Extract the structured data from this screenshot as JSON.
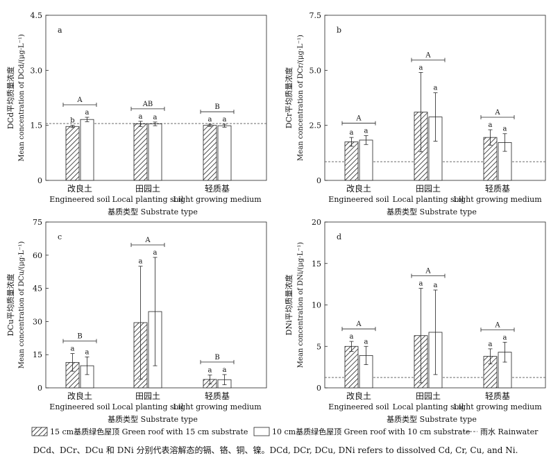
{
  "legend": {
    "s15": "15 cm基质绿色屋顶 Green roof with 15 cm substrate",
    "s10": "10 cm基质绿色屋顶 Green roof with 10 cm substrate",
    "rain": "雨水 Rainwater"
  },
  "caption": "DCd、DCr、DCu 和 DNi 分别代表溶解态的镉、铬、铜、镍。DCd, DCr, DCu, DNi refers to dissolved Cd, Cr, Cu, and Ni.",
  "colors": {
    "bar10": "#ffffff",
    "stroke": "#222222",
    "rain": "#555555"
  },
  "chart_data": [
    {
      "panel": "a",
      "type": "bar",
      "ylabel_cn": "DCd平均质量浓度",
      "ylabel_en": "Mean concentration of DCd/(μg·L⁻¹)",
      "ylim": [
        0,
        4.5
      ],
      "ticks": [
        0,
        1.5,
        3.0,
        4.5
      ],
      "tick_labels": [
        "0",
        "1.5",
        "3.0",
        "4.5"
      ],
      "categories_cn": [
        "改良土",
        "田园土",
        "轻质基"
      ],
      "categories_en": [
        "Engineered soil",
        "Local planting soil",
        "Light growing medium"
      ],
      "xlabel": "基质类型 Substrate type",
      "rainwater": 1.55,
      "series": [
        {
          "name": "15 cm",
          "values": [
            1.47,
            1.54,
            1.5
          ],
          "err": [
            0.03,
            0.07,
            0.03
          ],
          "letters": [
            "b",
            "a",
            "a"
          ]
        },
        {
          "name": "10 cm",
          "values": [
            1.66,
            1.54,
            1.49
          ],
          "err": [
            0.06,
            0.05,
            0.04
          ],
          "letters": [
            "a",
            "a",
            "a"
          ]
        }
      ],
      "group_letters": [
        "A",
        "AB",
        "B"
      ]
    },
    {
      "panel": "b",
      "type": "bar",
      "ylabel_cn": "DCr平均质量浓度",
      "ylabel_en": "Mean concentration of DCr/(μg·L⁻¹)",
      "ylim": [
        0,
        7.5
      ],
      "ticks": [
        0,
        2.5,
        5.0,
        7.5
      ],
      "tick_labels": [
        "0",
        "2.5",
        "5.0",
        "7.5"
      ],
      "categories_cn": [
        "改良土",
        "田园土",
        "轻质基"
      ],
      "categories_en": [
        "Engineered soil",
        "Local planting soil",
        "Light growing medium"
      ],
      "xlabel": "基质类型 Substrate type",
      "rainwater": 0.85,
      "series": [
        {
          "name": "15 cm",
          "values": [
            1.75,
            3.1,
            1.95
          ],
          "err": [
            0.2,
            1.8,
            0.35
          ],
          "letters": [
            "a",
            "a",
            "a"
          ]
        },
        {
          "name": "10 cm",
          "values": [
            1.83,
            2.88,
            1.72
          ],
          "err": [
            0.2,
            1.1,
            0.4
          ],
          "letters": [
            "a",
            "a",
            "a"
          ]
        }
      ],
      "group_letters": [
        "A",
        "A",
        "A"
      ]
    },
    {
      "panel": "c",
      "type": "bar",
      "ylabel_cn": "DCu平均质量浓度",
      "ylabel_en": "Mean concentration of DCu/(μg·L⁻¹)",
      "ylim": [
        0,
        75
      ],
      "ticks": [
        0,
        15,
        30,
        45,
        60,
        75
      ],
      "tick_labels": [
        "0",
        "15",
        "30",
        "45",
        "60",
        "75"
      ],
      "categories_cn": [
        "改良土",
        "田园土",
        "轻质基"
      ],
      "categories_en": [
        "Engineered soil",
        "Local planting soil",
        "Light growing medium"
      ],
      "xlabel": "基质类型 Substrate type",
      "rainwater": null,
      "series": [
        {
          "name": "15 cm",
          "values": [
            11.5,
            29.5,
            3.8
          ],
          "err": [
            4,
            25.5,
            2
          ],
          "letters": [
            "a",
            "a",
            "a"
          ]
        },
        {
          "name": "10 cm",
          "values": [
            10,
            34.5,
            3.7
          ],
          "err": [
            4,
            24.5,
            2.3
          ],
          "letters": [
            "a",
            "a",
            "a"
          ]
        }
      ],
      "group_letters": [
        "B",
        "A",
        "B"
      ]
    },
    {
      "panel": "d",
      "type": "bar",
      "ylabel_cn": "DNi平均质量浓度",
      "ylabel_en": "Mean concentration of DNi/(μg·L⁻¹)",
      "ylim": [
        0,
        20
      ],
      "ticks": [
        0,
        5,
        10,
        15,
        20
      ],
      "tick_labels": [
        "0",
        "5",
        "10",
        "15",
        "20"
      ],
      "categories_cn": [
        "改良土",
        "田园土",
        "轻质基"
      ],
      "categories_en": [
        "Engineered soil",
        "Local planting soil",
        "Light growing medium"
      ],
      "xlabel": "基质类型 Substrate type",
      "rainwater": 1.25,
      "series": [
        {
          "name": "15 cm",
          "values": [
            5.0,
            6.3,
            3.8
          ],
          "err": [
            0.6,
            5.7,
            0.9
          ],
          "letters": [
            "a",
            "a",
            "a"
          ]
        },
        {
          "name": "10 cm",
          "values": [
            3.9,
            6.7,
            4.3
          ],
          "err": [
            1.1,
            5.1,
            1.2
          ],
          "letters": [
            "a",
            "a",
            "a"
          ]
        }
      ],
      "group_letters": [
        "A",
        "A",
        "A"
      ]
    }
  ]
}
